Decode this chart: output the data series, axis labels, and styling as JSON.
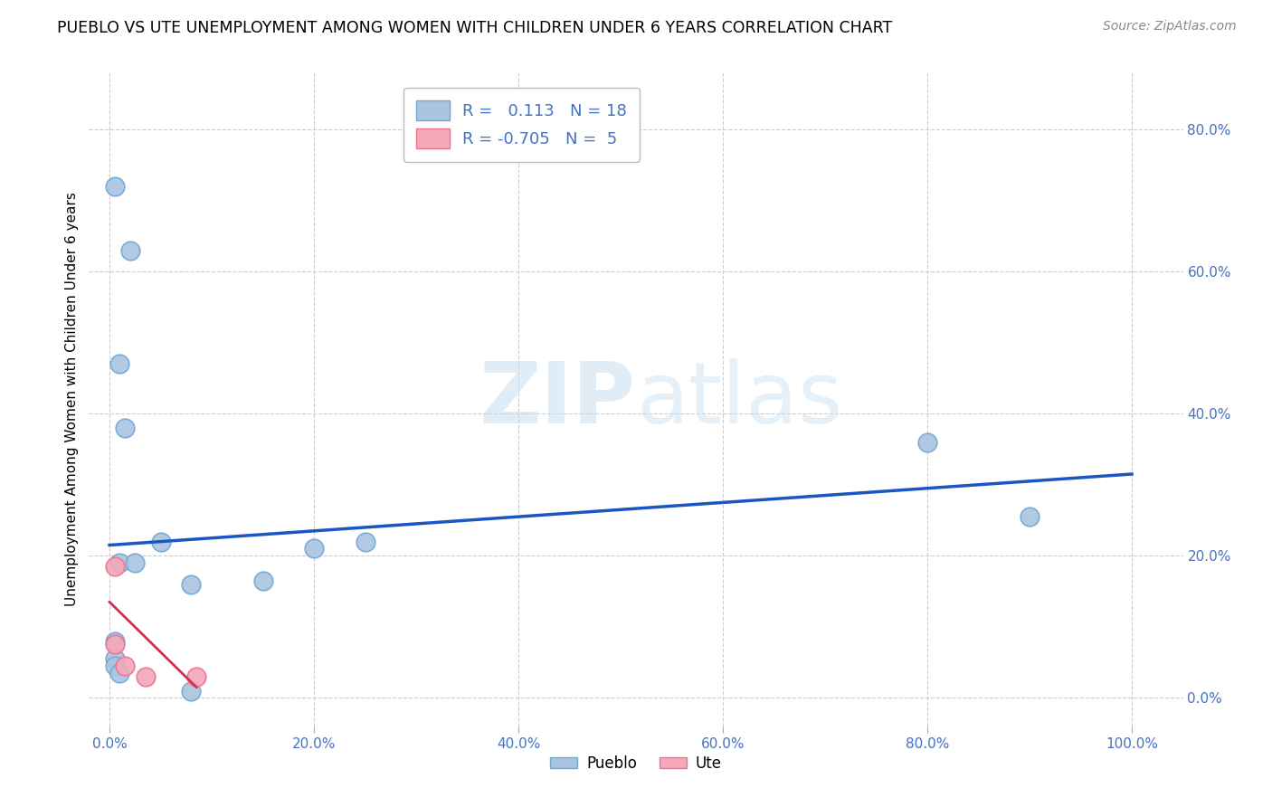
{
  "title": "PUEBLO VS UTE UNEMPLOYMENT AMONG WOMEN WITH CHILDREN UNDER 6 YEARS CORRELATION CHART",
  "source": "Source: ZipAtlas.com",
  "ylabel": "Unemployment Among Women with Children Under 6 years",
  "xlim": [
    -0.02,
    1.05
  ],
  "ylim": [
    -0.04,
    0.88
  ],
  "xticks": [
    0.0,
    0.2,
    0.4,
    0.6,
    0.8,
    1.0
  ],
  "xticklabels": [
    "0.0%",
    "20.0%",
    "40.0%",
    "60.0%",
    "80.0%",
    "100.0%"
  ],
  "yticks": [
    0.0,
    0.2,
    0.4,
    0.6,
    0.8
  ],
  "yticklabels": [
    "0.0%",
    "20.0%",
    "40.0%",
    "60.0%",
    "80.0%"
  ],
  "pueblo_fill_color": "#aac4e0",
  "ute_fill_color": "#f4a8b8",
  "pueblo_edge_color": "#6fa8d4",
  "ute_edge_color": "#f07090",
  "blue_line_color": "#1a56c4",
  "red_line_color": "#d03050",
  "pueblo_R": 0.113,
  "pueblo_N": 18,
  "ute_R": -0.705,
  "ute_N": 5,
  "pueblo_points_x": [
    0.005,
    0.02,
    0.01,
    0.015,
    0.01,
    0.005,
    0.005,
    0.01,
    0.005,
    0.025,
    0.05,
    0.08,
    0.08,
    0.15,
    0.2,
    0.25,
    0.8,
    0.9
  ],
  "pueblo_points_y": [
    0.72,
    0.63,
    0.47,
    0.38,
    0.19,
    0.055,
    0.045,
    0.035,
    0.08,
    0.19,
    0.22,
    0.16,
    0.01,
    0.165,
    0.21,
    0.22,
    0.36,
    0.255
  ],
  "ute_points_x": [
    0.005,
    0.005,
    0.015,
    0.035,
    0.085
  ],
  "ute_points_y": [
    0.185,
    0.075,
    0.045,
    0.03,
    0.03
  ],
  "pueblo_line_x": [
    0.0,
    1.0
  ],
  "pueblo_line_y": [
    0.215,
    0.315
  ],
  "ute_line_x": [
    0.0,
    0.085
  ],
  "ute_line_y": [
    0.135,
    0.015
  ],
  "watermark_zip": "ZIP",
  "watermark_atlas": "atlas",
  "background_color": "#ffffff",
  "grid_color": "#cccccc",
  "tick_color": "#4472c4",
  "title_fontsize": 12.5,
  "axis_label_fontsize": 11,
  "tick_fontsize": 11,
  "scatter_size": 220
}
